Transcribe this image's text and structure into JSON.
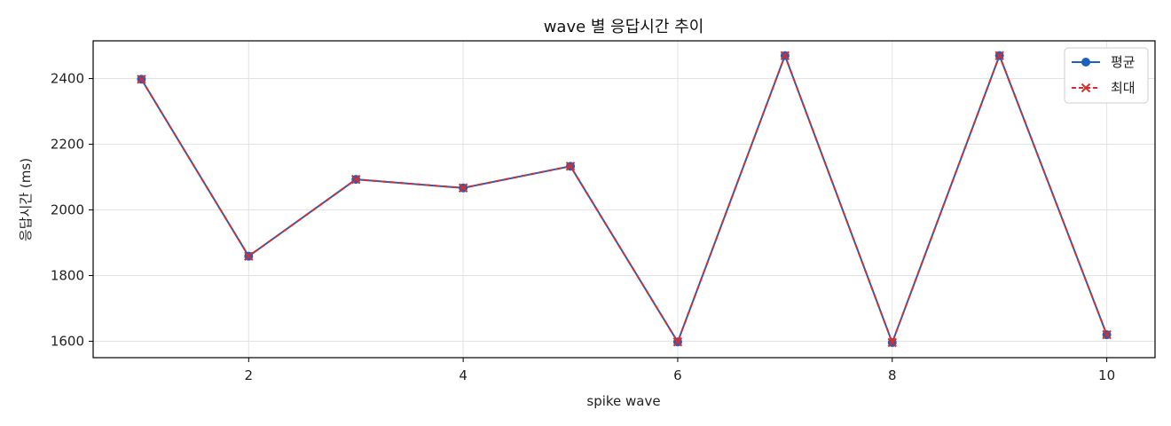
{
  "chart_data": {
    "type": "line",
    "title": "wave 별 응답시간 추이",
    "xlabel": "spike wave",
    "ylabel": "응답시간 (ms)",
    "x": [
      1,
      2,
      3,
      4,
      5,
      6,
      7,
      8,
      9,
      10
    ],
    "xlim": [
      0.55,
      10.45
    ],
    "ylim": [
      1550,
      2515
    ],
    "xticks": [
      2,
      4,
      6,
      8,
      10
    ],
    "yticks": [
      1600,
      1800,
      2000,
      2200,
      2400
    ],
    "grid": true,
    "legend_position": "top-right",
    "series": [
      {
        "name": "평균",
        "color": "#1f5fbf",
        "line_style": "solid",
        "marker": "circle",
        "values": [
          2398,
          1859,
          2093,
          2067,
          2133,
          1598,
          2470,
          1596,
          2470,
          1620
        ]
      },
      {
        "name": "최대",
        "color": "#d32f2f",
        "line_style": "dashed",
        "marker": "x",
        "values": [
          2398,
          1859,
          2093,
          2067,
          2133,
          1598,
          2470,
          1596,
          2470,
          1620
        ]
      }
    ]
  }
}
